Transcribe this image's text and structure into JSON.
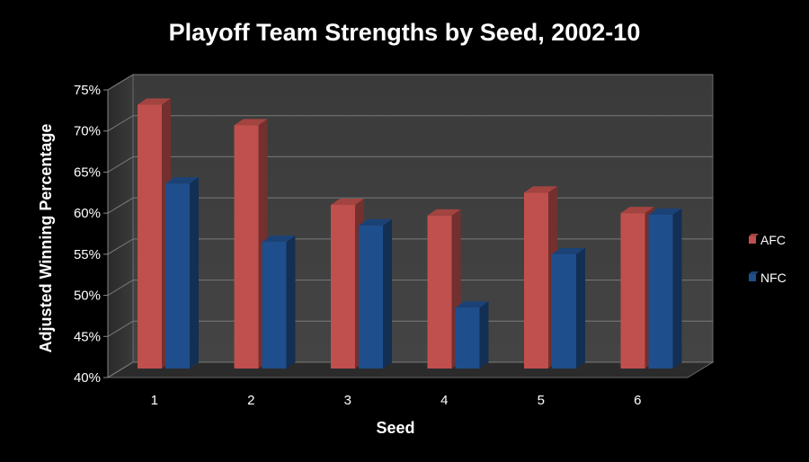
{
  "chart_data": {
    "type": "bar",
    "title": "Playoff Team Strengths by Seed, 2002-10",
    "xlabel": "Seed",
    "ylabel": "Adjusted Winning Percentage",
    "categories": [
      "1",
      "2",
      "3",
      "4",
      "5",
      "6"
    ],
    "series": [
      {
        "name": "AFC",
        "values": [
          73.2,
          70.7,
          61.0,
          59.7,
          62.5,
          60.0
        ],
        "color": "#c0504d"
      },
      {
        "name": "NFC",
        "values": [
          63.6,
          56.5,
          58.5,
          48.5,
          55.0,
          59.8
        ],
        "color": "#1f4e8c"
      }
    ],
    "ylim": [
      40,
      75
    ],
    "yticks": [
      40,
      45,
      50,
      55,
      60,
      65,
      70,
      75
    ],
    "ytick_labels": [
      "40%",
      "45%",
      "50%",
      "55%",
      "60%",
      "65%",
      "70%",
      "75%"
    ],
    "grid": true,
    "legend_position": "right",
    "style": "3d-clustered-column"
  }
}
